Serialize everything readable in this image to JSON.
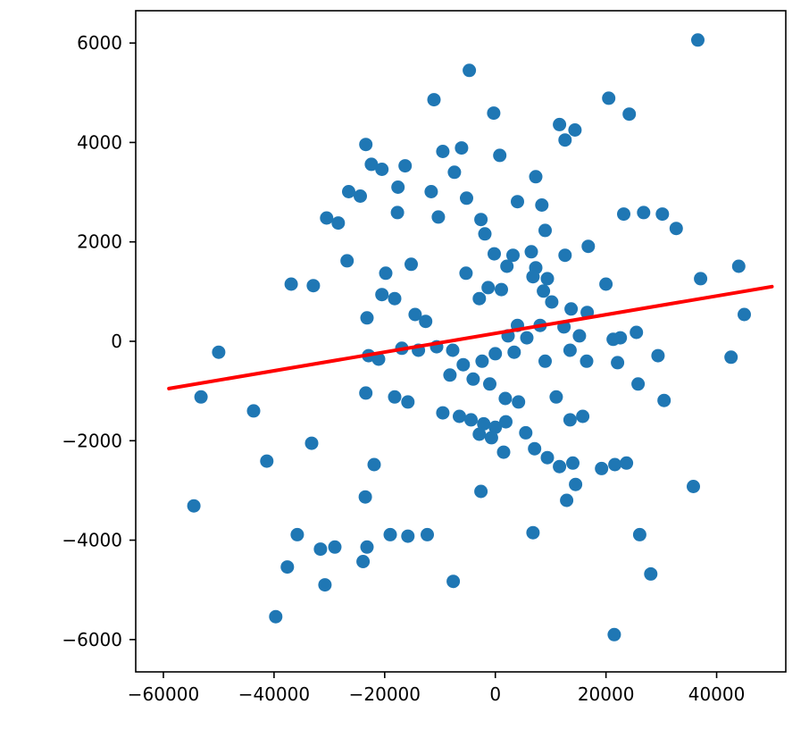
{
  "figure": {
    "background": "#ffffff"
  },
  "chart_data": {
    "type": "scatter",
    "title": "",
    "xlabel": "",
    "ylabel": "",
    "grid": false,
    "legend": "none",
    "xlim": [
      -65000,
      52500
    ],
    "ylim": [
      -6650,
      6650
    ],
    "marker_color": "#1f77b4",
    "marker_radius": 7.5,
    "axis_color": "#000000",
    "tick_font_size": 20,
    "xticks": {
      "values": [
        -60000,
        -40000,
        -20000,
        0,
        20000,
        40000
      ],
      "labels": [
        "−60000",
        "−40000",
        "−20000",
        "0",
        "20000",
        "40000"
      ]
    },
    "yticks": {
      "values": [
        -6000,
        -4000,
        -2000,
        0,
        2000,
        4000,
        6000
      ],
      "labels": [
        "−6000",
        "−4000",
        "−2000",
        "0",
        "2000",
        "4000",
        "6000"
      ]
    },
    "trendline": {
      "x": [
        -59000,
        50000
      ],
      "y": [
        -950,
        1100
      ],
      "color": "#ff0000",
      "width": 4
    },
    "points": [
      [
        36600,
        6060
      ],
      [
        -4700,
        5450
      ],
      [
        -11100,
        4860
      ],
      [
        -300,
        4590
      ],
      [
        20500,
        4890
      ],
      [
        24200,
        4570
      ],
      [
        11600,
        4360
      ],
      [
        14400,
        4250
      ],
      [
        12600,
        4050
      ],
      [
        -23400,
        3960
      ],
      [
        -9500,
        3820
      ],
      [
        -6100,
        3890
      ],
      [
        800,
        3740
      ],
      [
        -22400,
        3560
      ],
      [
        -20500,
        3460
      ],
      [
        -16300,
        3530
      ],
      [
        -7400,
        3400
      ],
      [
        7300,
        3310
      ],
      [
        -17600,
        3100
      ],
      [
        -26500,
        3010
      ],
      [
        -24400,
        2920
      ],
      [
        -11600,
        3010
      ],
      [
        -5200,
        2880
      ],
      [
        4000,
        2810
      ],
      [
        8400,
        2740
      ],
      [
        -17700,
        2590
      ],
      [
        -30500,
        2480
      ],
      [
        -10300,
        2500
      ],
      [
        -2600,
        2450
      ],
      [
        23200,
        2560
      ],
      [
        26800,
        2590
      ],
      [
        30200,
        2560
      ],
      [
        -28400,
        2380
      ],
      [
        -1900,
        2160
      ],
      [
        9000,
        2230
      ],
      [
        32700,
        2270
      ],
      [
        16800,
        1910
      ],
      [
        -200,
        1760
      ],
      [
        3200,
        1730
      ],
      [
        6500,
        1800
      ],
      [
        12600,
        1730
      ],
      [
        -26800,
        1620
      ],
      [
        -15200,
        1550
      ],
      [
        2100,
        1510
      ],
      [
        7300,
        1480
      ],
      [
        44000,
        1510
      ],
      [
        -19800,
        1370
      ],
      [
        -5300,
        1370
      ],
      [
        6800,
        1300
      ],
      [
        9400,
        1260
      ],
      [
        37100,
        1260
      ],
      [
        -36900,
        1150
      ],
      [
        -32900,
        1120
      ],
      [
        -1300,
        1080
      ],
      [
        1100,
        1040
      ],
      [
        8700,
        1010
      ],
      [
        20000,
        1150
      ],
      [
        -20500,
        940
      ],
      [
        -18200,
        860
      ],
      [
        -2900,
        860
      ],
      [
        10200,
        790
      ],
      [
        13700,
        650
      ],
      [
        16600,
        580
      ],
      [
        45000,
        540
      ],
      [
        -23200,
        470
      ],
      [
        -14500,
        540
      ],
      [
        -12600,
        400
      ],
      [
        4000,
        320
      ],
      [
        8100,
        320
      ],
      [
        12400,
        290
      ],
      [
        2300,
        110
      ],
      [
        5700,
        70
      ],
      [
        15200,
        110
      ],
      [
        22600,
        70
      ],
      [
        25500,
        180
      ],
      [
        -50000,
        -220
      ],
      [
        -16900,
        -140
      ],
      [
        -13900,
        -180
      ],
      [
        -10600,
        -110
      ],
      [
        -7700,
        -180
      ],
      [
        0,
        -250
      ],
      [
        3400,
        -220
      ],
      [
        13500,
        -180
      ],
      [
        21300,
        40
      ],
      [
        -22900,
        -290
      ],
      [
        -21100,
        -360
      ],
      [
        -5800,
        -470
      ],
      [
        -2400,
        -400
      ],
      [
        9000,
        -400
      ],
      [
        16500,
        -400
      ],
      [
        22100,
        -430
      ],
      [
        29400,
        -290
      ],
      [
        42600,
        -320
      ],
      [
        -8200,
        -680
      ],
      [
        -4000,
        -760
      ],
      [
        -1000,
        -860
      ],
      [
        25800,
        -860
      ],
      [
        -53200,
        -1120
      ],
      [
        -23400,
        -1040
      ],
      [
        -18200,
        -1120
      ],
      [
        -15800,
        -1220
      ],
      [
        1800,
        -1150
      ],
      [
        4200,
        -1220
      ],
      [
        11000,
        -1120
      ],
      [
        30500,
        -1190
      ],
      [
        -43700,
        -1400
      ],
      [
        -9500,
        -1440
      ],
      [
        -6500,
        -1510
      ],
      [
        -4400,
        -1580
      ],
      [
        -2100,
        -1660
      ],
      [
        0,
        -1730
      ],
      [
        1900,
        -1620
      ],
      [
        13500,
        -1580
      ],
      [
        15800,
        -1510
      ],
      [
        -2900,
        -1870
      ],
      [
        -700,
        -1940
      ],
      [
        5500,
        -1840
      ],
      [
        -33200,
        -2050
      ],
      [
        -41300,
        -2410
      ],
      [
        -21900,
        -2480
      ],
      [
        1500,
        -2230
      ],
      [
        7100,
        -2160
      ],
      [
        9400,
        -2340
      ],
      [
        11600,
        -2520
      ],
      [
        14000,
        -2450
      ],
      [
        19200,
        -2560
      ],
      [
        21600,
        -2480
      ],
      [
        23700,
        -2450
      ],
      [
        14500,
        -2880
      ],
      [
        35800,
        -2920
      ],
      [
        -54500,
        -3310
      ],
      [
        -23500,
        -3130
      ],
      [
        -2600,
        -3020
      ],
      [
        12900,
        -3200
      ],
      [
        -35800,
        -3890
      ],
      [
        -31600,
        -4180
      ],
      [
        -29000,
        -4140
      ],
      [
        -23200,
        -4140
      ],
      [
        -19000,
        -3890
      ],
      [
        -15800,
        -3920
      ],
      [
        -12300,
        -3890
      ],
      [
        6800,
        -3850
      ],
      [
        26100,
        -3890
      ],
      [
        -37600,
        -4540
      ],
      [
        -23900,
        -4430
      ],
      [
        -30800,
        -4900
      ],
      [
        -7600,
        -4830
      ],
      [
        28100,
        -4680
      ],
      [
        -39700,
        -5540
      ],
      [
        21500,
        -5900
      ]
    ]
  }
}
